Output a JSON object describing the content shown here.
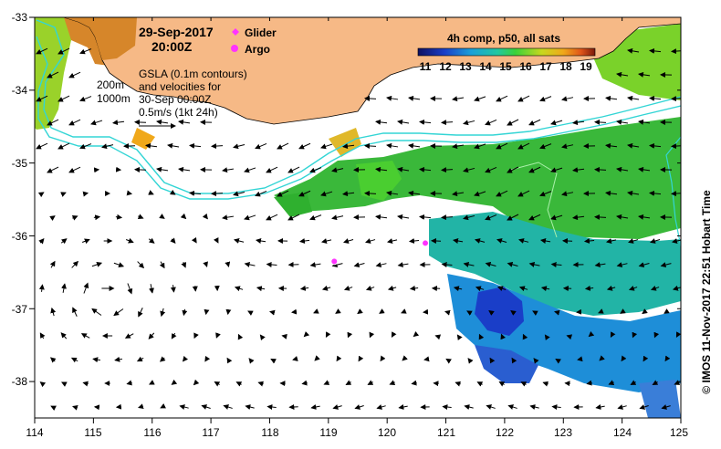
{
  "map": {
    "date": "29-Sep-2017",
    "time": "20:00Z",
    "legend_glider": "Glider",
    "legend_argo": "Argo",
    "gsla_lines": [
      "GSLA (0.1m contours)",
      "and velocities for",
      "30-Sep 00:00Z",
      "0.5m/s (1kt 24h)"
    ],
    "contour_labels": [
      "200m",
      "1000m"
    ],
    "colorbar_title": "4h comp, p50, all sats",
    "colorbar_ticks": [
      "11",
      "12",
      "13",
      "14",
      "15",
      "16",
      "17",
      "18",
      "19"
    ],
    "credit": "© IMOS 11-Nov-2017 22:51 Hobart Time",
    "x_ticks": [
      "114",
      "115",
      "116",
      "117",
      "118",
      "119",
      "120",
      "121",
      "122",
      "123",
      "124",
      "125"
    ],
    "y_ticks": [
      "-33",
      "-34",
      "-35",
      "-36",
      "-37",
      "-38"
    ],
    "colors": {
      "land": "#f6b986",
      "contour": "#33d5d5",
      "argo": "#ff33ff",
      "sst_cold": "#1a2ea8",
      "sst_warm": "#d94a1a"
    }
  },
  "chart_data": {
    "type": "map",
    "x_range": [
      114,
      125
    ],
    "y_range": [
      -38.5,
      -33
    ],
    "argo_floats": [
      {
        "lon": 119.1,
        "lat": -36.35
      },
      {
        "lon": 120.65,
        "lat": -36.1
      }
    ]
  }
}
